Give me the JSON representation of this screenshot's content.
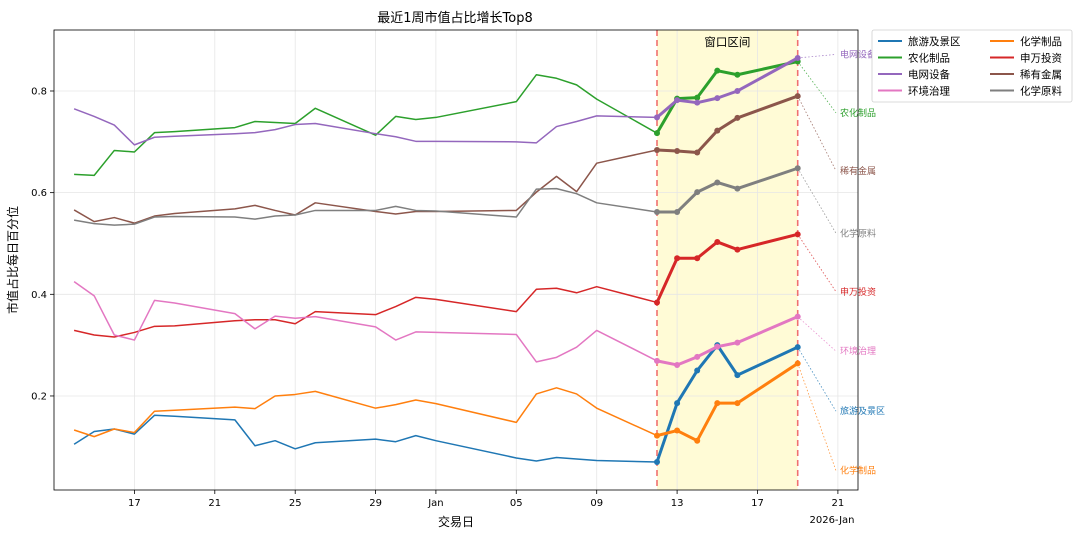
{
  "chart_data": {
    "type": "line",
    "title": "最近1周市值占比增长Top8",
    "xlabel": "交易日",
    "ylabel": "市值占比每日百分位",
    "xlim": [
      "2025-12-13",
      "2026-01-22"
    ],
    "ylim": [
      0.015,
      0.92
    ],
    "grid": true,
    "x_ticks": [
      {
        "date": "2025-12-17",
        "label": "17"
      },
      {
        "date": "2025-12-21",
        "label": "21"
      },
      {
        "date": "2025-12-25",
        "label": "25"
      },
      {
        "date": "2025-12-29",
        "label": "29"
      },
      {
        "date": "2026-01-01",
        "label": "Jan"
      },
      {
        "date": "2026-01-05",
        "label": "05"
      },
      {
        "date": "2026-01-09",
        "label": "09"
      },
      {
        "date": "2026-01-13",
        "label": "13"
      },
      {
        "date": "2026-01-17",
        "label": "17"
      },
      {
        "date": "2026-01-21",
        "label": "21"
      }
    ],
    "x_offset_label": "2026-Jan",
    "y_ticks": [
      {
        "value": 0.2,
        "label": "0.2"
      },
      {
        "value": 0.4,
        "label": "0.4"
      },
      {
        "value": 0.6,
        "label": "0.6"
      },
      {
        "value": 0.8,
        "label": "0.8"
      }
    ],
    "window": {
      "start": "2026-01-12",
      "end": "2026-01-19",
      "label": "窗口区间"
    },
    "legend_position": "outside-top-right",
    "dates": [
      "2025-12-14",
      "2025-12-15",
      "2025-12-16",
      "2025-12-17",
      "2025-12-18",
      "2025-12-19",
      "2025-12-22",
      "2025-12-23",
      "2025-12-24",
      "2025-12-25",
      "2025-12-26",
      "2025-12-29",
      "2025-12-30",
      "2025-12-31",
      "2026-01-01",
      "2026-01-05",
      "2026-01-06",
      "2026-01-07",
      "2026-01-08",
      "2026-01-09",
      "2026-01-12",
      "2026-01-13",
      "2026-01-14",
      "2026-01-15",
      "2026-01-16",
      "2026-01-19"
    ],
    "window_start_index": 20,
    "series": [
      {
        "name": "旅游及景区",
        "color": "#1f77b4",
        "label_y": 0.17,
        "values": [
          0.105,
          0.13,
          0.135,
          0.125,
          0.162,
          0.16,
          0.153,
          0.102,
          0.112,
          0.096,
          0.108,
          0.115,
          0.11,
          0.122,
          0.112,
          0.078,
          0.072,
          0.079,
          0.076,
          0.073,
          0.07,
          0.186,
          0.25,
          0.3,
          0.241,
          0.296
        ]
      },
      {
        "name": "化学制品",
        "color": "#ff7f0e",
        "label_y": 0.053,
        "values": [
          0.133,
          0.12,
          0.135,
          0.128,
          0.17,
          0.172,
          0.178,
          0.175,
          0.2,
          0.203,
          0.209,
          0.176,
          0.183,
          0.192,
          0.185,
          0.148,
          0.204,
          0.216,
          0.204,
          0.176,
          0.122,
          0.132,
          0.112,
          0.186,
          0.186,
          0.264
        ]
      },
      {
        "name": "农化制品",
        "color": "#2ca02c",
        "label_y": 0.757,
        "values": [
          0.636,
          0.634,
          0.683,
          0.68,
          0.718,
          0.72,
          0.728,
          0.74,
          0.738,
          0.736,
          0.766,
          0.713,
          0.75,
          0.744,
          0.748,
          0.779,
          0.832,
          0.825,
          0.812,
          0.784,
          0.717,
          0.785,
          0.787,
          0.84,
          0.832,
          0.858
        ]
      },
      {
        "name": "申万投资",
        "color": "#d62728",
        "label_y": 0.405,
        "values": [
          0.329,
          0.32,
          0.316,
          0.325,
          0.337,
          0.338,
          0.348,
          0.35,
          0.35,
          0.342,
          0.366,
          0.36,
          0.376,
          0.394,
          0.39,
          0.366,
          0.41,
          0.412,
          0.403,
          0.415,
          0.384,
          0.471,
          0.471,
          0.503,
          0.488,
          0.518
        ]
      },
      {
        "name": "电网设备",
        "color": "#9467bd",
        "label_y": 0.872,
        "values": [
          0.765,
          0.75,
          0.733,
          0.694,
          0.709,
          0.711,
          0.716,
          0.718,
          0.724,
          0.734,
          0.736,
          0.716,
          0.71,
          0.701,
          0.701,
          0.7,
          0.698,
          0.73,
          0.74,
          0.751,
          0.748,
          0.782,
          0.777,
          0.786,
          0.8,
          0.865
        ]
      },
      {
        "name": "稀有金属",
        "color": "#8c564b",
        "label_y": 0.643,
        "values": [
          0.566,
          0.543,
          0.551,
          0.54,
          0.554,
          0.559,
          0.568,
          0.575,
          0.565,
          0.556,
          0.58,
          0.563,
          0.558,
          0.563,
          0.563,
          0.565,
          0.601,
          0.632,
          0.602,
          0.658,
          0.684,
          0.682,
          0.679,
          0.722,
          0.747,
          0.79
        ]
      },
      {
        "name": "环境治理",
        "color": "#e377c2",
        "label_y": 0.288,
        "values": [
          0.425,
          0.397,
          0.32,
          0.31,
          0.388,
          0.383,
          0.362,
          0.332,
          0.357,
          0.353,
          0.356,
          0.336,
          0.31,
          0.326,
          0.325,
          0.321,
          0.267,
          0.276,
          0.296,
          0.329,
          0.269,
          0.261,
          0.277,
          0.297,
          0.305,
          0.356
        ]
      },
      {
        "name": "化学原料",
        "color": "#7f7f7f",
        "label_y": 0.52,
        "values": [
          0.546,
          0.539,
          0.536,
          0.538,
          0.552,
          0.553,
          0.552,
          0.548,
          0.554,
          0.556,
          0.565,
          0.565,
          0.573,
          0.565,
          0.564,
          0.552,
          0.607,
          0.608,
          0.598,
          0.58,
          0.562,
          0.562,
          0.601,
          0.62,
          0.608,
          0.648
        ]
      }
    ]
  }
}
